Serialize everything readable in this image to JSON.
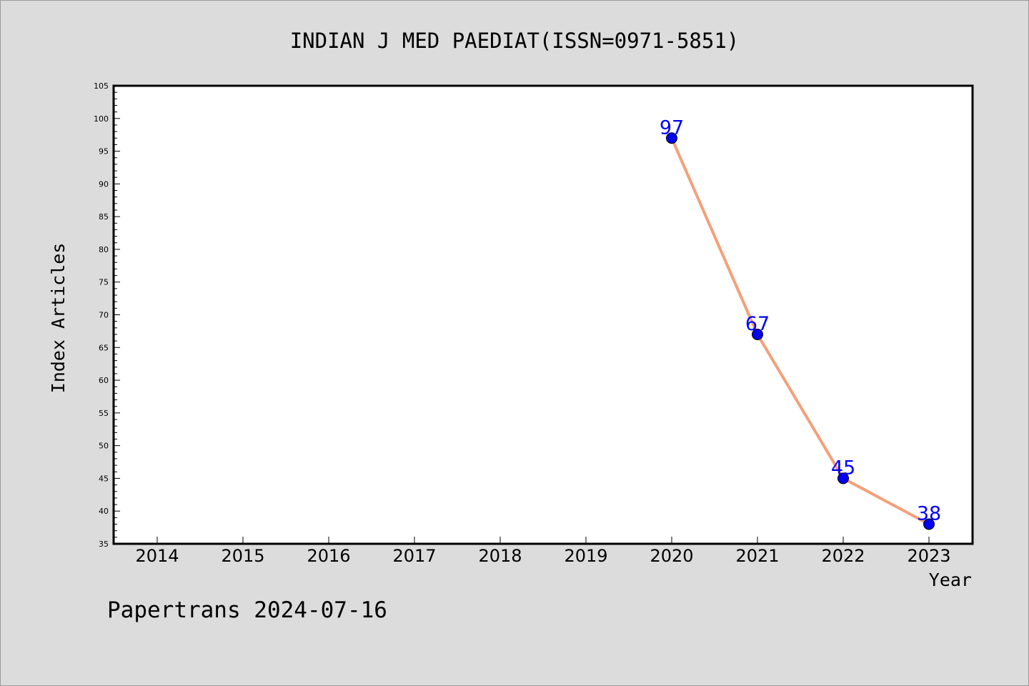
{
  "chart_data": {
    "type": "line",
    "title": "INDIAN J MED PAEDIAT(ISSN=0971-5851)",
    "xlabel": "Year",
    "ylabel": "Index Articles",
    "categories": [
      "2014",
      "2015",
      "2016",
      "2017",
      "2018",
      "2019",
      "2020",
      "2021",
      "2022",
      "2023"
    ],
    "series": [
      {
        "x": [
          "2020",
          "2021",
          "2022",
          "2023"
        ],
        "values": [
          97,
          67,
          45,
          38
        ]
      }
    ],
    "ylim": [
      35,
      105
    ],
    "yticks": [
      35,
      40,
      45,
      50,
      55,
      60,
      65,
      70,
      75,
      80,
      85,
      90,
      95,
      100,
      105
    ],
    "grid": false,
    "colors": {
      "line": "#f4a07a",
      "marker": "#0000ee",
      "label": "#0000ff"
    }
  },
  "footer": {
    "credit": "Papertrans 2024-07-16"
  }
}
